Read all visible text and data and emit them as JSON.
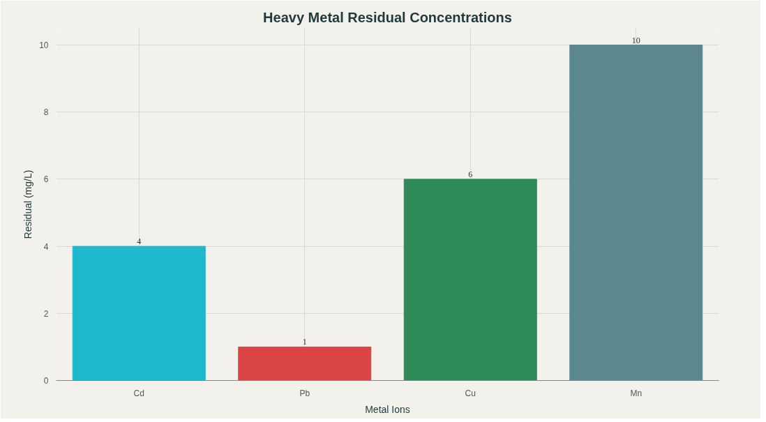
{
  "chart_data": {
    "type": "bar",
    "title": "Heavy Metal Residual Concentrations",
    "xlabel": "Metal Ions",
    "ylabel": "Residual (mg/L)",
    "categories": [
      "Cd",
      "Pb",
      "Cu",
      "Mn"
    ],
    "values": [
      4,
      1,
      6,
      10
    ],
    "colors": [
      "#1fb8cd",
      "#db4545",
      "#2e8b57",
      "#5d878f"
    ],
    "ylim": [
      0,
      10.5
    ],
    "yticks": [
      0,
      2,
      4,
      6,
      8,
      10
    ],
    "grid": true,
    "data_labels": true
  }
}
